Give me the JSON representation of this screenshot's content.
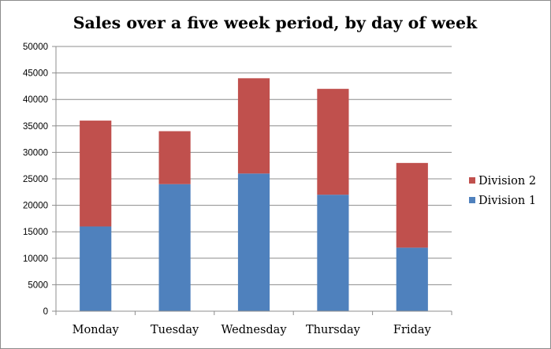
{
  "chart_data": {
    "type": "bar",
    "stacked": true,
    "title": "Sales over a five week period, by day of week",
    "xlabel": "",
    "ylabel": "",
    "categories": [
      "Monday",
      "Tuesday",
      "Wednesday",
      "Thursday",
      "Friday"
    ],
    "series": [
      {
        "name": "Division 1",
        "color": "#4f81bd",
        "values": [
          16000,
          24000,
          26000,
          22000,
          12000
        ]
      },
      {
        "name": "Division 2",
        "color": "#c0504d",
        "values": [
          20000,
          10000,
          18000,
          20000,
          16000
        ]
      }
    ],
    "ylim": [
      0,
      50000
    ],
    "yticks": [
      "0",
      "5000",
      "10000",
      "15000",
      "20000",
      "25000",
      "30000",
      "35000",
      "40000",
      "45000",
      "50000"
    ],
    "grid": true,
    "legend": {
      "position": "right",
      "entries": [
        "Division 2",
        "Division 1"
      ]
    }
  }
}
